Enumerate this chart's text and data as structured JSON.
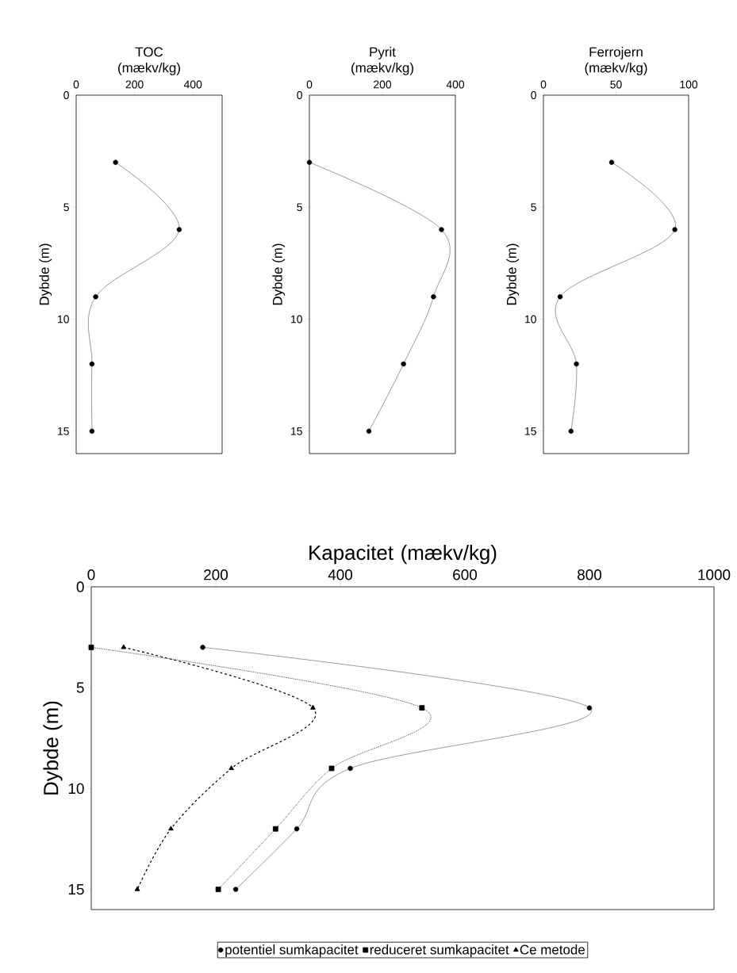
{
  "chart_data": [
    {
      "type": "line",
      "xlabel": "TOC (mækv/kg)",
      "ylabel": "Dybde (m)",
      "xlim": [
        0,
        500
      ],
      "xticks": [
        0,
        200,
        400
      ],
      "ylim": [
        16,
        0
      ],
      "yticks": [
        0,
        5,
        10,
        15
      ],
      "marker": "circle",
      "line_style": "solid",
      "series": [
        {
          "color": "#000000",
          "x": [
            135,
            353,
            67,
            54,
            54
          ],
          "values": [
            3,
            6,
            9,
            12,
            15
          ]
        }
      ]
    },
    {
      "type": "line",
      "xlabel": "Pyrit (mækv/kg)",
      "ylabel": "Dybde (m)",
      "xlim": [
        0,
        400
      ],
      "xticks": [
        0,
        200,
        400
      ],
      "ylim": [
        16,
        0
      ],
      "yticks": [
        0,
        5,
        10,
        15
      ],
      "marker": "circle",
      "line_style": "solid",
      "series": [
        {
          "color": "#000000",
          "x": [
            0,
            362,
            340,
            258,
            163
          ],
          "values": [
            3,
            6,
            9,
            12,
            15
          ]
        }
      ]
    },
    {
      "type": "line",
      "xlabel": "Ferrojern (mækv/kg)",
      "ylabel": "Dybde (m)",
      "xlim": [
        0,
        100
      ],
      "xticks": [
        0,
        50,
        100
      ],
      "ylim": [
        16,
        0
      ],
      "yticks": [
        0,
        5,
        10,
        15
      ],
      "marker": "circle",
      "line_style": "solid",
      "series": [
        {
          "color": "#000000",
          "x": [
            47,
            90.5,
            11.5,
            22.7,
            19
          ],
          "values": [
            3,
            6,
            9,
            12,
            15
          ]
        }
      ]
    },
    {
      "type": "line",
      "xlabel": "Kapacitet (mækv/kg)",
      "ylabel": "Dybde (m)",
      "xlim": [
        0,
        1000
      ],
      "xticks": [
        0,
        200,
        400,
        600,
        800,
        1000
      ],
      "ylim": [
        16,
        0
      ],
      "yticks": [
        0,
        5,
        10,
        15
      ],
      "legend": "bottom",
      "series": [
        {
          "name": "potentiel sumkapacitet",
          "color": "#000000",
          "marker": "circle",
          "line_style": "solid",
          "x": [
            179,
            800,
            416,
            330,
            232
          ],
          "values": [
            3,
            6,
            9,
            12,
            15
          ]
        },
        {
          "name": "reduceret sumkapacitet",
          "color": "#000000",
          "marker": "square",
          "line_style": "dotted",
          "x": [
            0,
            531,
            386,
            296,
            204
          ],
          "values": [
            3,
            6,
            9,
            12,
            15
          ]
        },
        {
          "name": "Ce metode",
          "color": "#000000",
          "marker": "triangle",
          "line_style": "dashed",
          "x": [
            52,
            356,
            225,
            128,
            74
          ],
          "values": [
            3,
            6,
            9,
            12,
            15
          ]
        }
      ]
    }
  ]
}
